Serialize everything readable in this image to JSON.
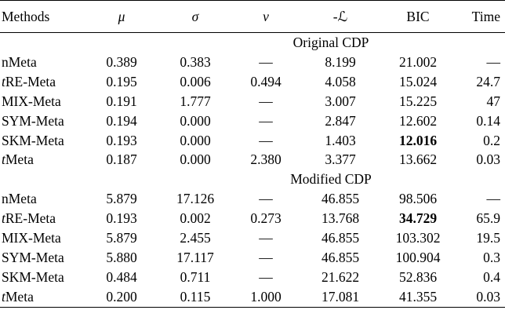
{
  "headers": {
    "methods": "Methods",
    "mu": "μ",
    "sigma": "σ",
    "nu": "ν",
    "negL": "-ℒ",
    "bic": "BIC",
    "time": "Time"
  },
  "sections": [
    {
      "title": "Original CDP",
      "rows": [
        {
          "prefix": "",
          "name": "nMeta",
          "mu": "0.389",
          "sigma": "0.383",
          "nu": "—",
          "negL": "8.199",
          "bic": "21.002",
          "bic_bold": false,
          "time": "—"
        },
        {
          "prefix": "t",
          "name": "RE-Meta",
          "mu": "0.195",
          "sigma": "0.006",
          "nu": "0.494",
          "negL": "4.058",
          "bic": "15.024",
          "bic_bold": false,
          "time": "24.7"
        },
        {
          "prefix": "",
          "name": "MIX-Meta",
          "mu": "0.191",
          "sigma": "1.777",
          "nu": "—",
          "negL": "3.007",
          "bic": "15.225",
          "bic_bold": false,
          "time": "47"
        },
        {
          "prefix": "",
          "name": "SYM-Meta",
          "mu": "0.194",
          "sigma": "0.000",
          "nu": "—",
          "negL": "2.847",
          "bic": "12.602",
          "bic_bold": false,
          "time": "0.14"
        },
        {
          "prefix": "",
          "name": "SKM-Meta",
          "mu": "0.193",
          "sigma": "0.000",
          "nu": "—",
          "negL": "1.403",
          "bic": "12.016",
          "bic_bold": true,
          "time": "0.2"
        },
        {
          "prefix": "t",
          "name": "Meta",
          "mu": "0.187",
          "sigma": "0.000",
          "nu": "2.380",
          "negL": "3.377",
          "bic": "13.662",
          "bic_bold": false,
          "time": "0.03"
        }
      ]
    },
    {
      "title": "Modified CDP",
      "rows": [
        {
          "prefix": "",
          "name": "nMeta",
          "mu": "5.879",
          "sigma": "17.126",
          "nu": "—",
          "negL": "46.855",
          "bic": "98.506",
          "bic_bold": false,
          "time": "—"
        },
        {
          "prefix": "t",
          "name": "RE-Meta",
          "mu": "0.193",
          "sigma": "0.002",
          "nu": "0.273",
          "negL": "13.768",
          "bic": "34.729",
          "bic_bold": true,
          "time": "65.9"
        },
        {
          "prefix": "",
          "name": "MIX-Meta",
          "mu": "5.879",
          "sigma": "2.455",
          "nu": "—",
          "negL": "46.855",
          "bic": "103.302",
          "bic_bold": false,
          "time": "19.5"
        },
        {
          "prefix": "",
          "name": "SYM-Meta",
          "mu": "5.880",
          "sigma": "17.117",
          "nu": "—",
          "negL": "46.855",
          "bic": "100.904",
          "bic_bold": false,
          "time": "0.3"
        },
        {
          "prefix": "",
          "name": "SKM-Meta",
          "mu": "0.484",
          "sigma": "0.711",
          "nu": "—",
          "negL": "21.622",
          "bic": "52.836",
          "bic_bold": false,
          "time": "0.4"
        },
        {
          "prefix": "t",
          "name": "Meta",
          "mu": "0.200",
          "sigma": "0.115",
          "nu": "1.000",
          "negL": "17.081",
          "bic": "41.355",
          "bic_bold": false,
          "time": "0.03"
        }
      ]
    }
  ]
}
